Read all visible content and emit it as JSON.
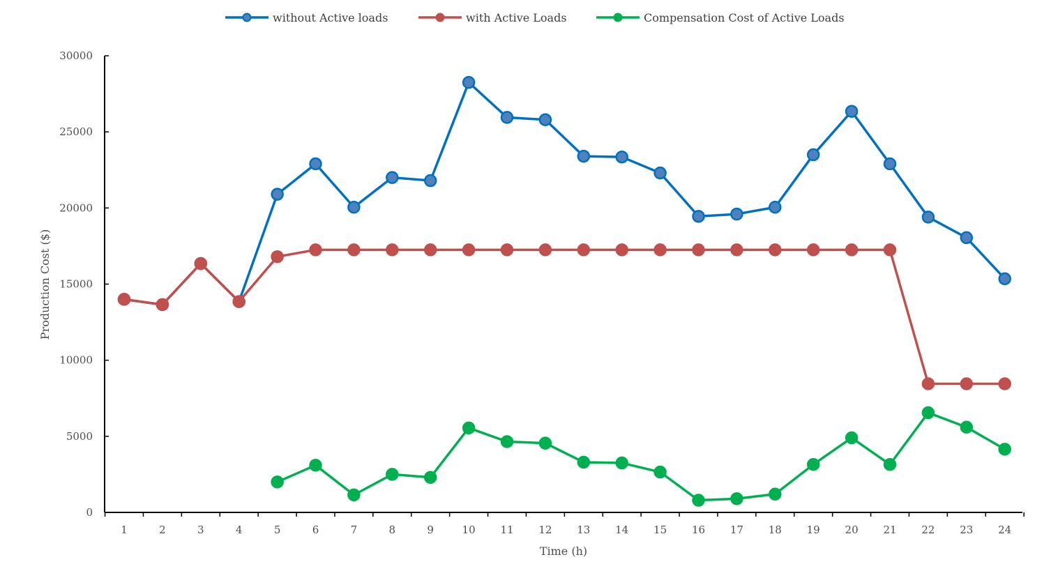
{
  "chart_data": {
    "type": "line",
    "title": "",
    "xlabel": "Time (h)",
    "ylabel": "Production Cost ($)",
    "x": [
      1,
      2,
      3,
      4,
      5,
      6,
      7,
      8,
      9,
      10,
      11,
      12,
      13,
      14,
      15,
      16,
      17,
      18,
      19,
      20,
      21,
      22,
      23,
      24
    ],
    "ylim": [
      0,
      30000
    ],
    "yticks": [
      0,
      5000,
      10000,
      15000,
      20000,
      25000,
      30000
    ],
    "grid": false,
    "legend_position": "top-center",
    "series": [
      {
        "name": "without Active loads",
        "color": "#0070c0",
        "marker_fill": "#4f81bd",
        "values": [
          14000,
          13650,
          16350,
          13850,
          20900,
          22900,
          20050,
          22000,
          21800,
          28250,
          25950,
          25800,
          23400,
          23350,
          22300,
          19450,
          19600,
          20050,
          23500,
          26350,
          22900,
          19400,
          18050,
          15350
        ]
      },
      {
        "name": "with Active Loads",
        "color": "#c0504d",
        "marker_fill": "#c0504d",
        "values": [
          14000,
          13650,
          16350,
          13850,
          16800,
          17250,
          17250,
          17250,
          17250,
          17250,
          17250,
          17250,
          17250,
          17250,
          17250,
          17250,
          17250,
          17250,
          17250,
          17250,
          17250,
          8450,
          8450,
          8450
        ]
      },
      {
        "name": "Compensation Cost of Active Loads",
        "color": "#00b050",
        "marker_fill": "#00b050",
        "values": [
          null,
          null,
          null,
          null,
          2000,
          3100,
          1150,
          2500,
          2300,
          5550,
          4650,
          4550,
          3300,
          3250,
          2650,
          800,
          900,
          1200,
          3150,
          4900,
          3150,
          6550,
          5600,
          4150
        ]
      }
    ]
  }
}
